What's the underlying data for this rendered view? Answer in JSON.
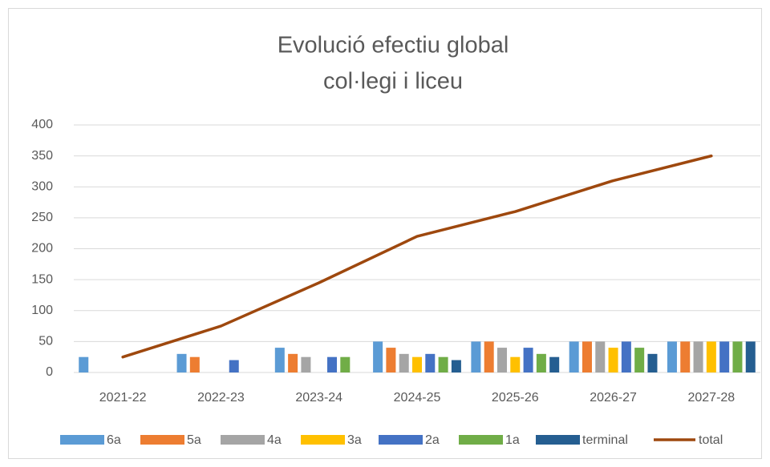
{
  "chart_data": {
    "type": "bar-line",
    "title": [
      "Evolució efectiu global",
      "col·legi i liceu"
    ],
    "categories": [
      "2021-22",
      "2022-23",
      "2023-24",
      "2024-25",
      "2025-26",
      "2026-27",
      "2027-28"
    ],
    "series": [
      {
        "name": "6a",
        "type": "bar",
        "color": "#5b9bd5",
        "values": [
          25,
          30,
          40,
          50,
          50,
          50,
          50
        ]
      },
      {
        "name": "5a",
        "type": "bar",
        "color": "#ed7d31",
        "values": [
          0,
          25,
          30,
          40,
          50,
          50,
          50
        ]
      },
      {
        "name": "4a",
        "type": "bar",
        "color": "#a5a5a5",
        "values": [
          0,
          0,
          25,
          30,
          40,
          50,
          50
        ]
      },
      {
        "name": "3a",
        "type": "bar",
        "color": "#ffc000",
        "values": [
          0,
          0,
          0,
          25,
          25,
          40,
          50
        ]
      },
      {
        "name": "2a",
        "type": "bar",
        "color": "#4472c4",
        "values": [
          0,
          20,
          25,
          30,
          40,
          50,
          50
        ]
      },
      {
        "name": "1a",
        "type": "bar",
        "color": "#70ad47",
        "values": [
          0,
          0,
          25,
          25,
          30,
          40,
          50
        ]
      },
      {
        "name": "terminal",
        "type": "bar",
        "color": "#255e91",
        "values": [
          0,
          0,
          0,
          20,
          25,
          30,
          50
        ]
      },
      {
        "name": "total",
        "type": "line",
        "color": "#9e480e",
        "values": [
          25,
          75,
          145,
          220,
          260,
          310,
          350
        ]
      }
    ],
    "ylim": [
      0,
      400
    ],
    "yticks": [
      0,
      50,
      100,
      150,
      200,
      250,
      300,
      350,
      400
    ],
    "grid": true,
    "legend": "bottom"
  }
}
